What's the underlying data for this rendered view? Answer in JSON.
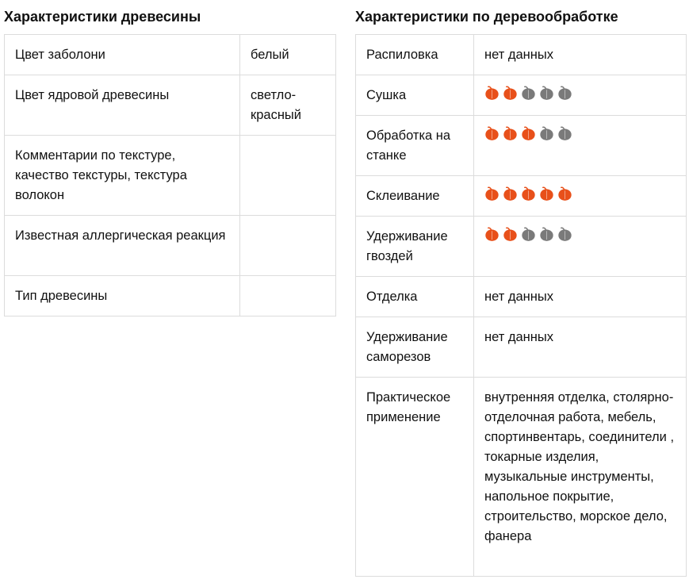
{
  "left_section": {
    "title": "Характеристики древесины",
    "rows": [
      {
        "label": "Цвет заболони",
        "value": "белый"
      },
      {
        "label": "Цвет ядровой древесины",
        "value": "светло-красный"
      },
      {
        "label": "Комментарии по текстуре, качество текстуры, текстура волокон",
        "value": ""
      },
      {
        "label": "Известная аллергическая реакция",
        "value": ""
      },
      {
        "label": "Тип древесины",
        "value": ""
      }
    ]
  },
  "right_section": {
    "title": "Характеристики по деревообработке",
    "rows": [
      {
        "label": "Распиловка",
        "value": "нет данных"
      },
      {
        "label": "Сушка",
        "rating": 2,
        "rating_max": 5
      },
      {
        "label": "Обработка на станке",
        "rating": 3,
        "rating_max": 5
      },
      {
        "label": "Склеивание",
        "rating": 5,
        "rating_max": 5
      },
      {
        "label": "Удерживание гвоздей",
        "rating": 2,
        "rating_max": 5
      },
      {
        "label": "Отделка",
        "value": "нет данных"
      },
      {
        "label": "Удерживание саморезов",
        "value": "нет данных"
      },
      {
        "label": "Практическое применение",
        "value": "внутренняя отделка, столярно-отделочная работа, мебель, спортинвентарь, соединители , токарные изделия, музыкальные инструменты, напольное покрытие, строительство, морское дело, фанера"
      }
    ]
  },
  "rating_icon": "leaf-icon",
  "colors": {
    "leaf_active": "#e8501a",
    "leaf_inactive": "#7a7a7a",
    "border": "#dcdcdc",
    "text": "#111111"
  }
}
